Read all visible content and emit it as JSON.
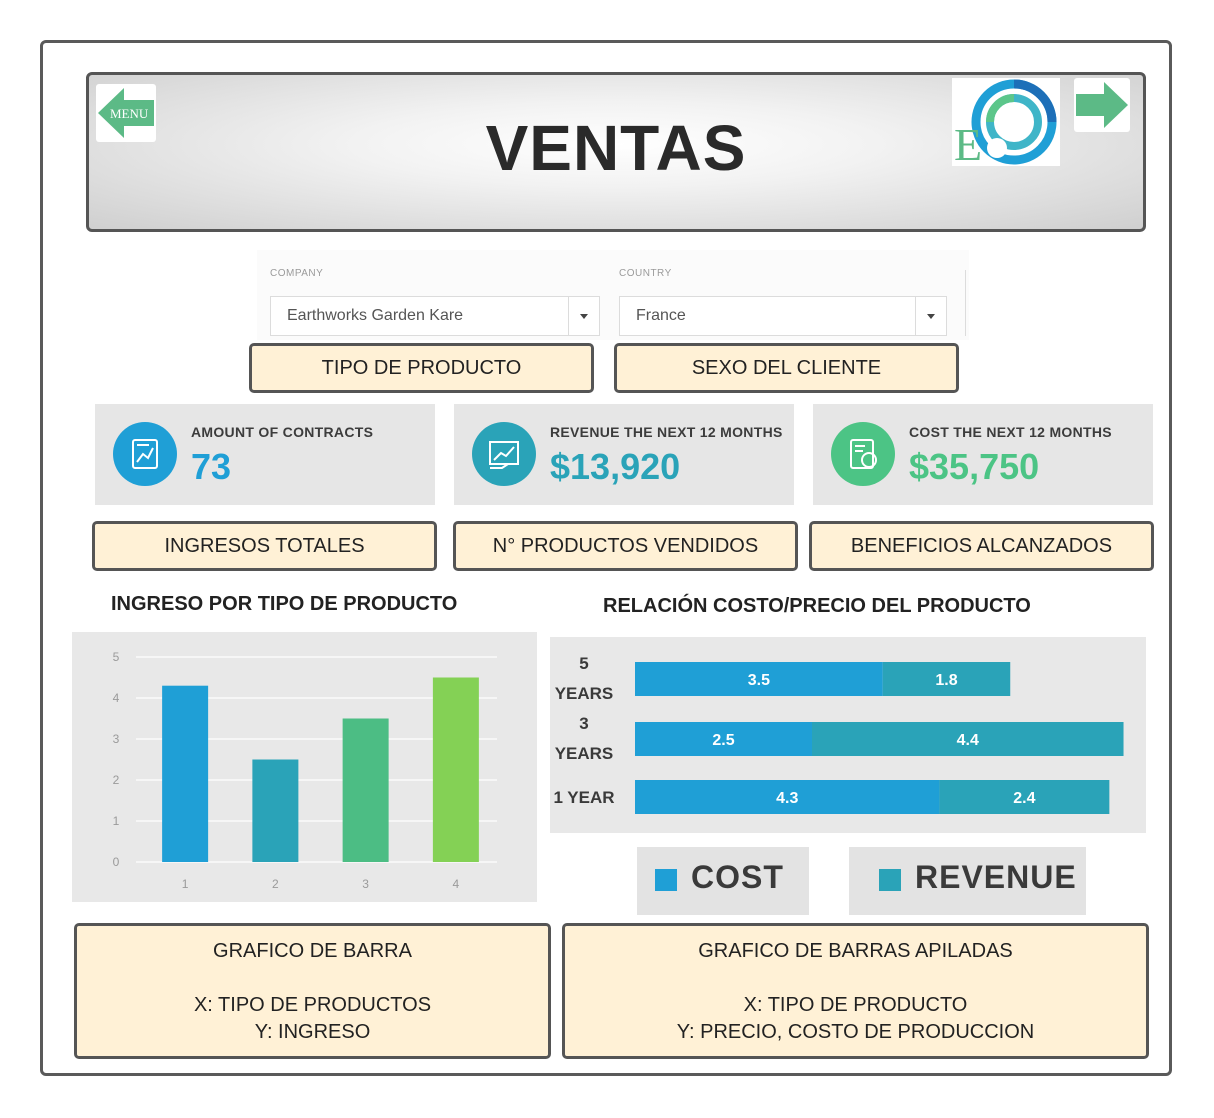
{
  "header": {
    "title": "VENTAS",
    "menu_label": "MENU",
    "logo_letter": "E"
  },
  "filters": {
    "company": {
      "label": "COMPANY",
      "value": "Earthworks Garden Kare"
    },
    "country": {
      "label": "COUNTRY",
      "value": "France"
    }
  },
  "filter_tags": [
    "TIPO DE PRODUCTO",
    "SEXO DEL CLIENTE"
  ],
  "kpis": [
    {
      "label": "AMOUNT OF CONTRACTS",
      "value": "73",
      "color": "#1f9fd6",
      "icon": "contracts-icon"
    },
    {
      "label": "REVENUE THE NEXT 12 MONTHS",
      "value": "$13,920",
      "color": "#2aa3b8",
      "icon": "revenue-icon"
    },
    {
      "label": "COST THE NEXT 12 MONTHS",
      "value": "$35,750",
      "color": "#4cc485",
      "icon": "cost-icon"
    }
  ],
  "kpi_tags": [
    "INGRESOS TOTALES",
    "N° PRODUCTOS VENDIDOS",
    "BENEFICIOS ALCANZADOS"
  ],
  "sections": {
    "left_title": "INGRESO POR TIPO DE PRODUCTO",
    "right_title": "RELACIÓN COSTO/PRECIO DEL PRODUCTO"
  },
  "chart_data": [
    {
      "type": "bar",
      "title": "INGRESO POR TIPO DE PRODUCTO",
      "categories": [
        "1",
        "2",
        "3",
        "4"
      ],
      "values": [
        4.3,
        2.5,
        3.5,
        4.5
      ],
      "colors": [
        "#1f9fd6",
        "#2aa3b8",
        "#4cbd84",
        "#84d155"
      ],
      "ylim": [
        0,
        5
      ],
      "yticks": [
        "0",
        "1",
        "2",
        "3",
        "4",
        "5"
      ],
      "grid": true
    },
    {
      "type": "bar",
      "orientation": "horizontal",
      "stacked": true,
      "title": "RELACIÓN COSTO/PRECIO DEL PRODUCTO",
      "categories": [
        [
          "5",
          "YEARS"
        ],
        [
          "3",
          "YEARS"
        ],
        [
          "1 YEAR"
        ]
      ],
      "series": [
        {
          "name": "COST",
          "values": [
            3.5,
            2.5,
            4.3
          ],
          "color": "#1f9fd6"
        },
        {
          "name": "REVENUE",
          "values": [
            1.8,
            4.4,
            2.4
          ],
          "color": "#2aa3b8"
        }
      ]
    }
  ],
  "legend": [
    {
      "label": "COST",
      "color": "#1f9fd6"
    },
    {
      "label": "REVENUE",
      "color": "#2aa3b8"
    }
  ],
  "notes": {
    "left": {
      "line1": "GRAFICO DE BARRA",
      "line2": "X: TIPO DE PRODUCTOS",
      "line3": "Y: INGRESO"
    },
    "right": {
      "line1": "GRAFICO DE BARRAS APILADAS",
      "line2": "X: TIPO DE PRODUCTO",
      "line3": "Y:  PRECIO, COSTO DE PRODUCCION"
    }
  }
}
